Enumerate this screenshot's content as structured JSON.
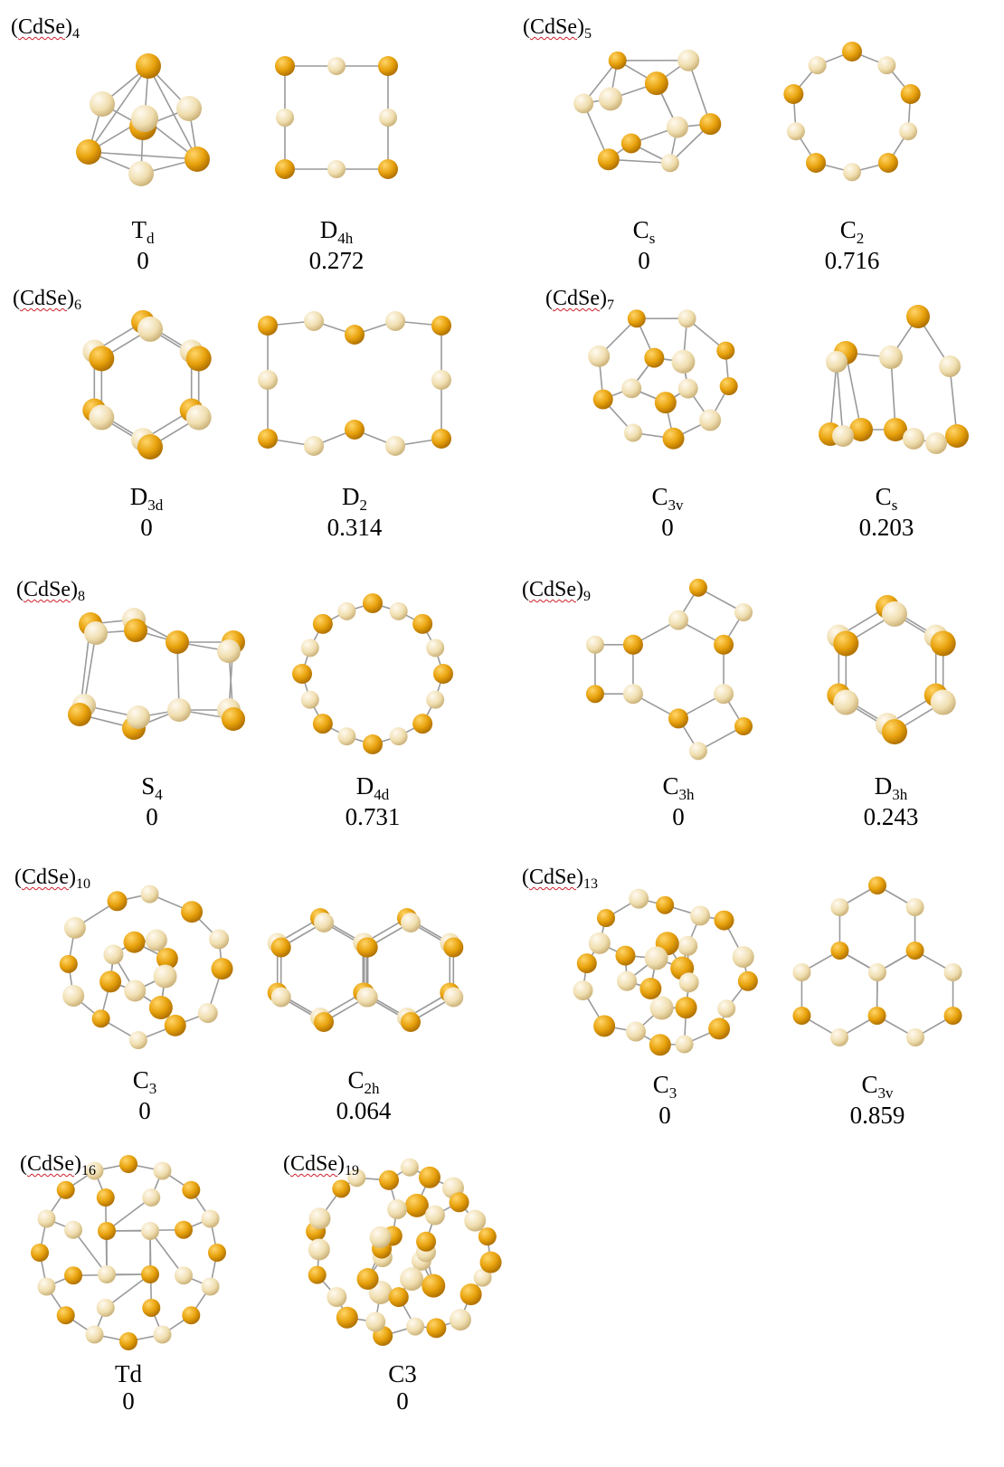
{
  "colors": {
    "cd": "#e8a20c",
    "se": "#f0deaf",
    "bond": "#9a9a9a"
  },
  "groups": [
    {
      "formula": "CdSe",
      "n": "4",
      "isomers": [
        {
          "sym": "T",
          "sub": "d",
          "energy": "0",
          "shape": "tetra"
        },
        {
          "sym": "D",
          "sub": "4h",
          "energy": "0.272",
          "shape": "ring",
          "k": 4
        }
      ]
    },
    {
      "formula": "CdSe",
      "n": "5",
      "isomers": [
        {
          "sym": "C",
          "sub": "s",
          "energy": "0",
          "shape": "cage",
          "count": 10,
          "seed": 5
        },
        {
          "sym": "C",
          "sub": "2",
          "energy": "0.716",
          "shape": "ring",
          "k": 5
        }
      ]
    },
    {
      "formula": "CdSe",
      "n": "6",
      "isomers": [
        {
          "sym": "D",
          "sub": "3d",
          "energy": "0",
          "shape": "hexprism"
        },
        {
          "sym": "D",
          "sub": "2",
          "energy": "0.314",
          "shape": "rect6"
        }
      ]
    },
    {
      "formula": "CdSe",
      "n": "7",
      "isomers": [
        {
          "sym": "C",
          "sub": "3v",
          "energy": "0",
          "shape": "cage",
          "count": 14,
          "seed": 7
        },
        {
          "sym": "C",
          "sub": "s",
          "energy": "0.203",
          "shape": "tube"
        }
      ]
    },
    {
      "formula": "CdSe",
      "n": "8",
      "isomers": [
        {
          "sym": "S",
          "sub": "4",
          "energy": "0",
          "shape": "hexsquare"
        },
        {
          "sym": "D",
          "sub": "4d",
          "energy": "0.731",
          "shape": "ring",
          "k": 8
        }
      ]
    },
    {
      "formula": "CdSe",
      "n": "9",
      "isomers": [
        {
          "sym": "C",
          "sub": "3h",
          "energy": "0",
          "shape": "tri9"
        },
        {
          "sym": "D",
          "sub": "3h",
          "energy": "0.243",
          "shape": "hexprism"
        }
      ]
    },
    {
      "formula": "CdSe",
      "n": "10",
      "isomers": [
        {
          "sym": "C",
          "sub": "3",
          "energy": "0",
          "shape": "cage",
          "count": 20,
          "seed": 10
        },
        {
          "sym": "C",
          "sub": "2h",
          "energy": "0.064",
          "shape": "twohex"
        }
      ]
    },
    {
      "formula": "CdSe",
      "n": "13",
      "isomers": [
        {
          "sym": "C",
          "sub": "3",
          "energy": "0",
          "shape": "cage",
          "count": 26,
          "seed": 13
        },
        {
          "sym": "C",
          "sub": "3v",
          "energy": "0.859",
          "shape": "threehex"
        }
      ]
    },
    {
      "formula": "CdSe",
      "n": "16",
      "isomers": [
        {
          "sym": "Td",
          "sub": "",
          "energy": "0",
          "shape": "td16"
        }
      ]
    },
    {
      "formula": "CdSe",
      "n": "19",
      "isomers": [
        {
          "sym": "C3",
          "sub": "",
          "energy": "0",
          "shape": "cage",
          "count": 38,
          "seed": 19
        }
      ]
    }
  ]
}
